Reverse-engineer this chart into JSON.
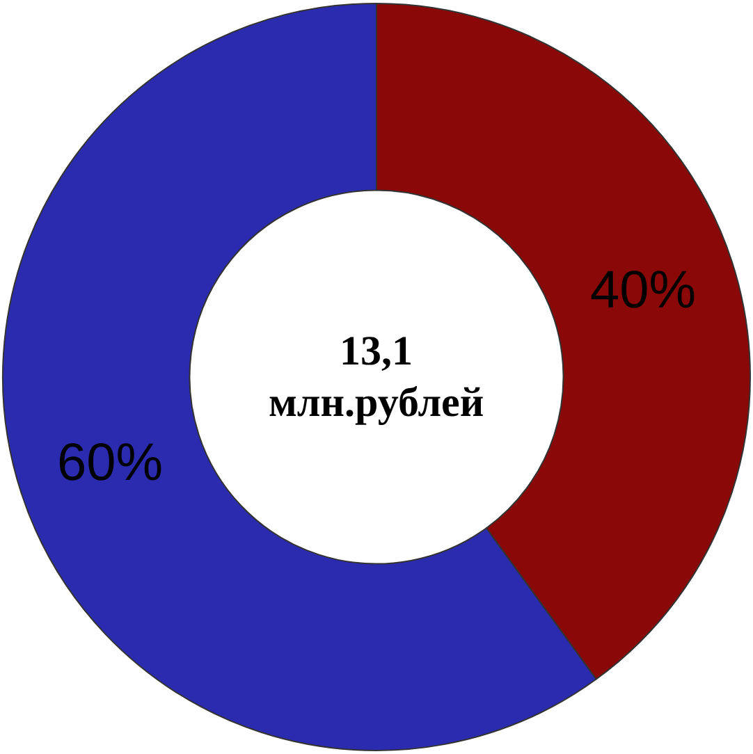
{
  "chart_data": {
    "type": "donut",
    "categories": [
      null,
      null
    ],
    "values": [
      40,
      60
    ],
    "colors": [
      "#8a0808",
      "#2b2bb0"
    ],
    "value_labels": [
      "40%",
      "60%"
    ],
    "annotations": [
      "13,1",
      "млн.рублей"
    ],
    "legend": false
  }
}
